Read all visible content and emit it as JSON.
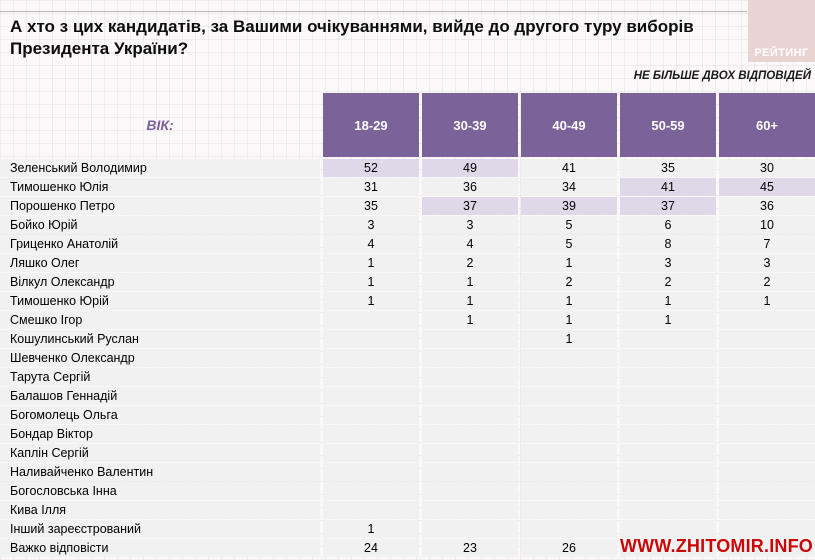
{
  "page": {
    "title": "А хто з цих кандидатів, за Вашими очікуваннями, вийде до другого туру виборів Президента України?",
    "logo_text": "РЕЙТИНГ",
    "note": "НЕ БІЛЬШЕ ДВОХ ВІДПОВІДЕЙ",
    "watermark": "WWW.ZHITOMIR.INFO"
  },
  "colors": {
    "header_purple": "#7b639a",
    "cell_highlight": "#ded8e9",
    "row_bg": "#f1f1f1",
    "logo_pink": "#e9d4d3",
    "watermark_red": "#cc0606",
    "age_label_purple": "#7b639a"
  },
  "chart_data": {
    "type": "table",
    "title": "А хто з цих кандидатів, за Вашими очікуваннями, вийде до другого туру виборів Президента України?",
    "note": "НЕ БІЛЬШЕ ДВОХ ВІДПОВІДЕЙ",
    "age_label": "ВІК:",
    "columns": [
      "18-29",
      "30-39",
      "40-49",
      "50-59",
      "60+"
    ],
    "rows": [
      {
        "label": "Зеленський Володимир",
        "values": [
          "52",
          "49",
          "41",
          "35",
          "30"
        ],
        "highlights": [
          true,
          true,
          false,
          false,
          false
        ]
      },
      {
        "label": "Тимошенко Юлія",
        "values": [
          "31",
          "36",
          "34",
          "41",
          "45"
        ],
        "highlights": [
          false,
          false,
          false,
          true,
          true
        ]
      },
      {
        "label": "Порошенко Петро",
        "values": [
          "35",
          "37",
          "39",
          "37",
          "36"
        ],
        "highlights": [
          false,
          true,
          true,
          true,
          false
        ]
      },
      {
        "label": "Бойко Юрій",
        "values": [
          "3",
          "3",
          "5",
          "6",
          "10"
        ]
      },
      {
        "label": "Гриценко Анатолій",
        "values": [
          "4",
          "4",
          "5",
          "8",
          "7"
        ]
      },
      {
        "label": "Ляшко Олег",
        "values": [
          "1",
          "2",
          "1",
          "3",
          "3"
        ]
      },
      {
        "label": "Вілкул Олександр",
        "values": [
          "1",
          "1",
          "2",
          "2",
          "2"
        ]
      },
      {
        "label": "Тимошенко Юрій",
        "values": [
          "1",
          "1",
          "1",
          "1",
          "1"
        ]
      },
      {
        "label": "Смешко Ігор",
        "values": [
          "",
          "1",
          "1",
          "1",
          ""
        ]
      },
      {
        "label": "Кошулинський Руслан",
        "values": [
          "",
          "",
          "1",
          "",
          ""
        ]
      },
      {
        "label": "Шевченко Олександр",
        "values": [
          "",
          "",
          "",
          "",
          ""
        ]
      },
      {
        "label": "Тарута Сергій",
        "values": [
          "",
          "",
          "",
          "",
          ""
        ]
      },
      {
        "label": "Балашов Геннадій",
        "values": [
          "",
          "",
          "",
          "",
          ""
        ]
      },
      {
        "label": "Богомолець Ольга",
        "values": [
          "",
          "",
          "",
          "",
          ""
        ]
      },
      {
        "label": "Бондар Віктор",
        "values": [
          "",
          "",
          "",
          "",
          ""
        ]
      },
      {
        "label": "Каплін Сергій",
        "values": [
          "",
          "",
          "",
          "",
          ""
        ]
      },
      {
        "label": "Наливайченко Валентин",
        "values": [
          "",
          "",
          "",
          "",
          ""
        ]
      },
      {
        "label": "Богословська Інна",
        "values": [
          "",
          "",
          "",
          "",
          ""
        ]
      },
      {
        "label": "Кива Ілля",
        "values": [
          "",
          "",
          "",
          "",
          ""
        ]
      },
      {
        "label": "Інший зареєстрований",
        "values": [
          "1",
          "",
          "",
          "",
          ""
        ]
      },
      {
        "label": "Важко відповісти",
        "values": [
          "24",
          "23",
          "26",
          "",
          ""
        ]
      }
    ]
  }
}
